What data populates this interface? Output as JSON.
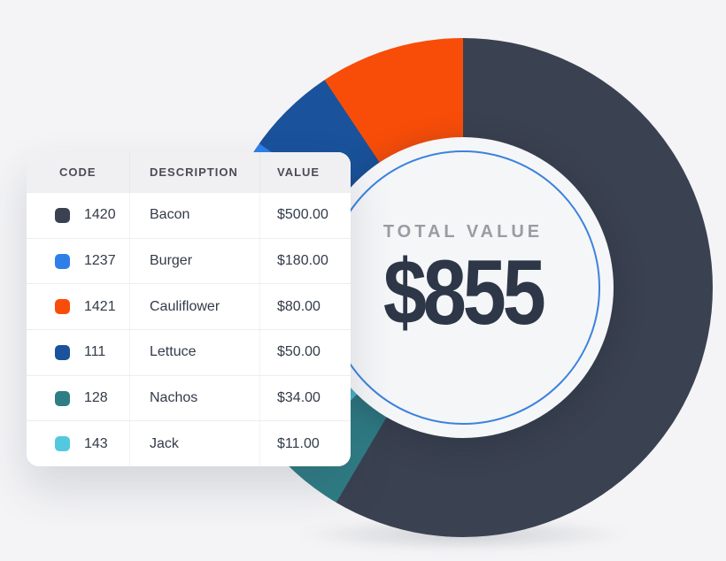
{
  "table": {
    "headers": [
      "CODE",
      "DESCRIPTION",
      "VALUE"
    ],
    "rows": [
      {
        "code": "1420",
        "description": "Bacon",
        "value": "$500.00",
        "color": "#3a4150"
      },
      {
        "code": "1237",
        "description": "Burger",
        "value": "$180.00",
        "color": "#2e7fe8"
      },
      {
        "code": "1421",
        "description": "Cauliflower",
        "value": "$80.00",
        "color": "#f84d09"
      },
      {
        "code": "111",
        "description": "Lettuce",
        "value": "$50.00",
        "color": "#1a529b"
      },
      {
        "code": "128",
        "description": "Nachos",
        "value": "$34.00",
        "color": "#2f7d85"
      },
      {
        "code": "143",
        "description": "Jack",
        "value": "$11.00",
        "color": "#52c9de"
      }
    ]
  },
  "donut": {
    "center_label": "TOTAL VALUE",
    "center_value": "$855",
    "ring_color": "#3b82dc",
    "disc_color": "#f5f6f8",
    "label_color": "#9b9ba3",
    "value_color": "#2d3748"
  },
  "chart_data": {
    "type": "pie",
    "title": "Total Value donut chart with legend table",
    "categories": [
      "Bacon",
      "Burger",
      "Cauliflower",
      "Lettuce",
      "Nachos",
      "Jack"
    ],
    "values": [
      500,
      180,
      80,
      50,
      34,
      11
    ],
    "colors": [
      "#3a4150",
      "#2e7fe8",
      "#f84d09",
      "#1a529b",
      "#2f7d85",
      "#52c9de"
    ],
    "total": 855,
    "center_label": "TOTAL VALUE",
    "center_value_display": "$855",
    "donut_hole_ratio": 0.6,
    "start_angle_deg": 0,
    "direction": "clockwise",
    "draw_order": [
      "Bacon",
      "Nachos",
      "Jack",
      "Burger",
      "Lettuce",
      "Cauliflower"
    ],
    "legend_position": "left-table"
  }
}
